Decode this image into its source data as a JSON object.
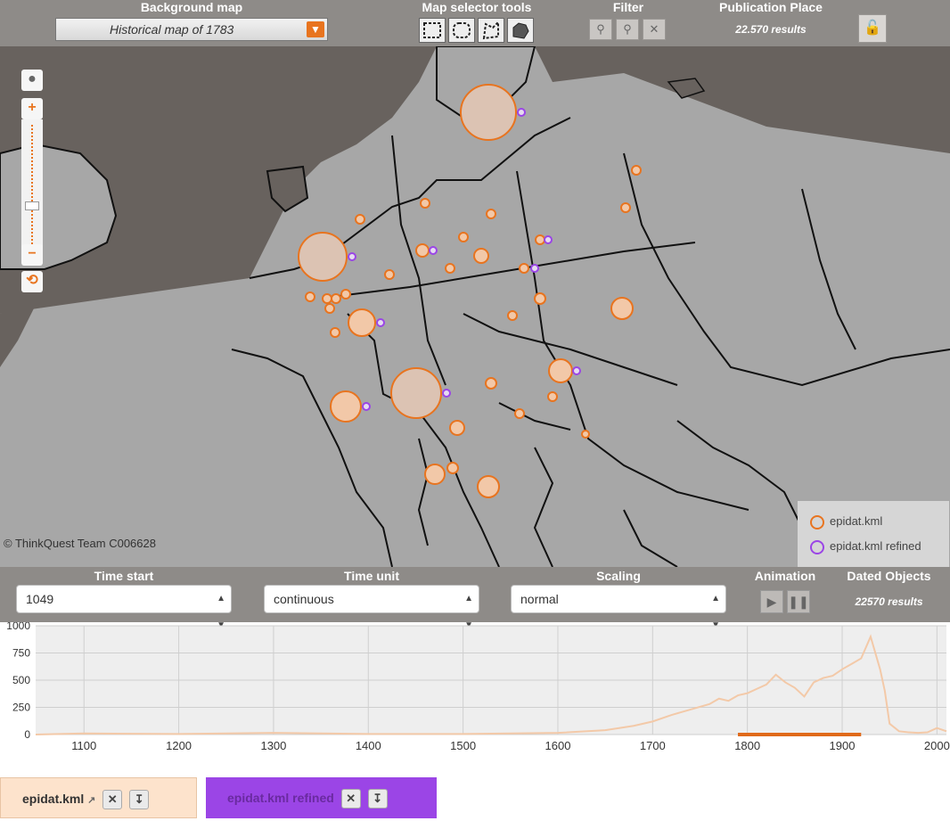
{
  "top": {
    "background_map": {
      "heading": "Background map",
      "value": "Historical map of 1783"
    },
    "map_selector": {
      "heading": "Map selector tools"
    },
    "filter": {
      "heading": "Filter"
    },
    "publication": {
      "heading": "Publication Place",
      "results": "22.570 results"
    }
  },
  "map": {
    "copyright": "© ThinkQuest Team C006628",
    "legend": [
      {
        "label": "epidat.kml",
        "color": "#e8741f"
      },
      {
        "label": "epidat.kml refined",
        "color": "#9b45e6"
      }
    ],
    "zoom_in": "+",
    "zoom_out": "−",
    "reset": "⟲"
  },
  "controls": {
    "time_start": {
      "heading": "Time start",
      "value": "1049"
    },
    "time_unit": {
      "heading": "Time unit",
      "value": "continuous"
    },
    "scaling": {
      "heading": "Scaling",
      "value": "normal"
    },
    "animation": {
      "heading": "Animation"
    },
    "dated": {
      "heading": "Dated Objects",
      "results": "22570 results"
    }
  },
  "chart_data": {
    "type": "line",
    "x_ticks": [
      "1100",
      "1200",
      "1300",
      "1400",
      "1500",
      "1600",
      "1700",
      "1800",
      "1900",
      "2000"
    ],
    "y_ticks": [
      "0",
      "250",
      "500",
      "750",
      "1000"
    ],
    "xlim": [
      1049,
      2010
    ],
    "ylim": [
      0,
      1000
    ],
    "series": [
      {
        "color": "#f3c9a8",
        "x": [
          1049,
          1100,
          1200,
          1300,
          1400,
          1500,
          1600,
          1650,
          1680,
          1700,
          1720,
          1740,
          1760,
          1770,
          1780,
          1790,
          1800,
          1810,
          1820,
          1830,
          1840,
          1850,
          1860,
          1870,
          1880,
          1890,
          1900,
          1910,
          1920,
          1930,
          1940,
          1945,
          1950,
          1960,
          1970,
          1980,
          1990,
          2000,
          2010
        ],
        "y": [
          0,
          10,
          5,
          15,
          5,
          5,
          15,
          40,
          80,
          120,
          180,
          230,
          280,
          330,
          310,
          360,
          380,
          420,
          460,
          550,
          480,
          430,
          350,
          480,
          520,
          540,
          600,
          650,
          700,
          900,
          600,
          400,
          100,
          30,
          20,
          15,
          20,
          60,
          30
        ]
      },
      {
        "color": "#e06a1a",
        "x": [
          1790,
          1800,
          1810,
          1820,
          1830,
          1840,
          1850,
          1860,
          1870,
          1880,
          1890,
          1900,
          1910,
          1920
        ],
        "y": [
          0,
          0,
          0,
          0,
          0,
          0,
          0,
          0,
          0,
          0,
          0,
          0,
          0,
          0
        ]
      }
    ]
  },
  "tabs": [
    {
      "label": "epidat.kml"
    },
    {
      "label": "epidat.kml refined"
    }
  ]
}
